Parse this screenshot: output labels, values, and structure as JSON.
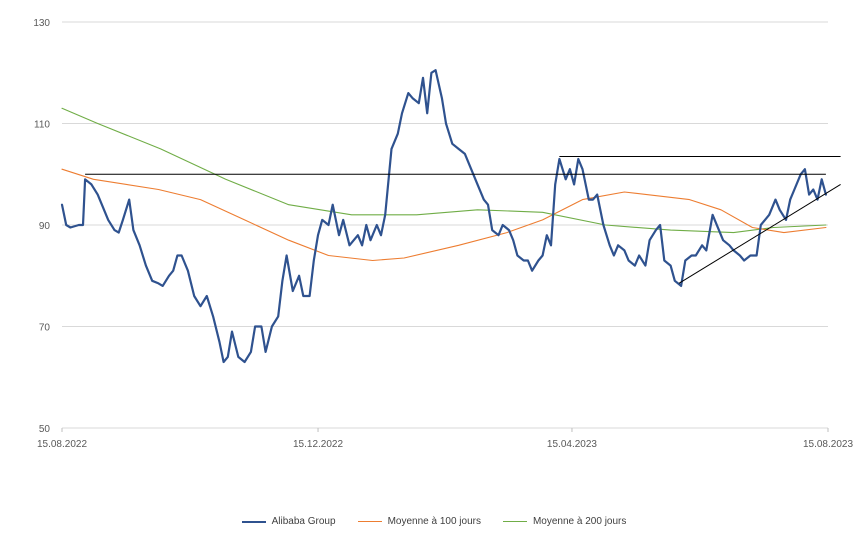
{
  "chart_data": {
    "type": "line",
    "title": "",
    "xlabel": "",
    "ylabel": "",
    "ylim": [
      50,
      130
    ],
    "yticks": [
      50,
      70,
      90,
      110,
      130
    ],
    "y_tick_labels": [
      "50",
      "70",
      "90",
      "110",
      "130"
    ],
    "xlim": [
      "2022-08-15",
      "2023-08-15"
    ],
    "x_tick_labels": [
      "15.08.2022",
      "15.12.2022",
      "15.04.2023",
      "15.08.2023"
    ],
    "grid": "horizontal",
    "legend_position": "bottom",
    "series": [
      {
        "name": "Alibaba Group",
        "color": "#2f528f",
        "points": [
          [
            "2022-08-15",
            94
          ],
          [
            "2022-08-17",
            90
          ],
          [
            "2022-08-19",
            89.5
          ],
          [
            "2022-08-23",
            90
          ],
          [
            "2022-08-25",
            90
          ],
          [
            "2022-08-26",
            99
          ],
          [
            "2022-08-29",
            98
          ],
          [
            "2022-09-01",
            96
          ],
          [
            "2022-09-03",
            94
          ],
          [
            "2022-09-06",
            91
          ],
          [
            "2022-09-09",
            89
          ],
          [
            "2022-09-11",
            88.5
          ],
          [
            "2022-09-13",
            91
          ],
          [
            "2022-09-16",
            95
          ],
          [
            "2022-09-18",
            89
          ],
          [
            "2022-09-21",
            86
          ],
          [
            "2022-09-24",
            82
          ],
          [
            "2022-09-27",
            79
          ],
          [
            "2022-09-30",
            78.5
          ],
          [
            "2022-10-02",
            78
          ],
          [
            "2022-10-05",
            80
          ],
          [
            "2022-10-07",
            81
          ],
          [
            "2022-10-09",
            84
          ],
          [
            "2022-10-11",
            84
          ],
          [
            "2022-10-14",
            81
          ],
          [
            "2022-10-17",
            76
          ],
          [
            "2022-10-20",
            74
          ],
          [
            "2022-10-23",
            76
          ],
          [
            "2022-10-26",
            72
          ],
          [
            "2022-10-29",
            67
          ],
          [
            "2022-10-31",
            63
          ],
          [
            "2022-11-02",
            64
          ],
          [
            "2022-11-04",
            69
          ],
          [
            "2022-11-07",
            64
          ],
          [
            "2022-11-10",
            63
          ],
          [
            "2022-11-13",
            65
          ],
          [
            "2022-11-15",
            70
          ],
          [
            "2022-11-18",
            70
          ],
          [
            "2022-11-20",
            65
          ],
          [
            "2022-11-23",
            70
          ],
          [
            "2022-11-26",
            72
          ],
          [
            "2022-11-28",
            79
          ],
          [
            "2022-11-30",
            84
          ],
          [
            "2022-12-03",
            77
          ],
          [
            "2022-12-06",
            80
          ],
          [
            "2022-12-08",
            76
          ],
          [
            "2022-12-11",
            76
          ],
          [
            "2022-12-13",
            83
          ],
          [
            "2022-12-15",
            88
          ],
          [
            "2022-12-17",
            91
          ],
          [
            "2022-12-20",
            90
          ],
          [
            "2022-12-22",
            94
          ],
          [
            "2022-12-25",
            88
          ],
          [
            "2022-12-27",
            91
          ],
          [
            "2022-12-30",
            86
          ],
          [
            "2023-01-03",
            88
          ],
          [
            "2023-01-05",
            86
          ],
          [
            "2023-01-07",
            90
          ],
          [
            "2023-01-09",
            87
          ],
          [
            "2023-01-12",
            90
          ],
          [
            "2023-01-14",
            88
          ],
          [
            "2023-01-16",
            92
          ],
          [
            "2023-01-19",
            105
          ],
          [
            "2023-01-22",
            108
          ],
          [
            "2023-01-24",
            112
          ],
          [
            "2023-01-27",
            116
          ],
          [
            "2023-01-29",
            115
          ],
          [
            "2023-02-01",
            114
          ],
          [
            "2023-02-03",
            119
          ],
          [
            "2023-02-05",
            112
          ],
          [
            "2023-02-07",
            120
          ],
          [
            "2023-02-09",
            120.5
          ],
          [
            "2023-02-12",
            115
          ],
          [
            "2023-02-14",
            110
          ],
          [
            "2023-02-17",
            106
          ],
          [
            "2023-02-20",
            105
          ],
          [
            "2023-02-23",
            104
          ],
          [
            "2023-02-26",
            101
          ],
          [
            "2023-03-01",
            98
          ],
          [
            "2023-03-04",
            95
          ],
          [
            "2023-03-06",
            94
          ],
          [
            "2023-03-08",
            89
          ],
          [
            "2023-03-11",
            88
          ],
          [
            "2023-03-13",
            90
          ],
          [
            "2023-03-16",
            89
          ],
          [
            "2023-03-18",
            87
          ],
          [
            "2023-03-20",
            84
          ],
          [
            "2023-03-23",
            83
          ],
          [
            "2023-03-25",
            83
          ],
          [
            "2023-03-27",
            81
          ],
          [
            "2023-03-30",
            83
          ],
          [
            "2023-04-01",
            84
          ],
          [
            "2023-04-03",
            88
          ],
          [
            "2023-04-05",
            86
          ],
          [
            "2023-04-07",
            98
          ],
          [
            "2023-04-09",
            103
          ],
          [
            "2023-04-12",
            99
          ],
          [
            "2023-04-14",
            101
          ],
          [
            "2023-04-16",
            98
          ],
          [
            "2023-04-18",
            103
          ],
          [
            "2023-04-20",
            101
          ],
          [
            "2023-04-23",
            95
          ],
          [
            "2023-04-25",
            95
          ],
          [
            "2023-04-27",
            96
          ],
          [
            "2023-04-30",
            90
          ],
          [
            "2023-05-03",
            86
          ],
          [
            "2023-05-05",
            84
          ],
          [
            "2023-05-07",
            86
          ],
          [
            "2023-05-10",
            85
          ],
          [
            "2023-05-12",
            83
          ],
          [
            "2023-05-15",
            82
          ],
          [
            "2023-05-17",
            84
          ],
          [
            "2023-05-20",
            82
          ],
          [
            "2023-05-22",
            87
          ],
          [
            "2023-05-25",
            89
          ],
          [
            "2023-05-27",
            90
          ],
          [
            "2023-05-29",
            83
          ],
          [
            "2023-06-01",
            82
          ],
          [
            "2023-06-03",
            79
          ],
          [
            "2023-06-06",
            78
          ],
          [
            "2023-06-08",
            83
          ],
          [
            "2023-06-11",
            84
          ],
          [
            "2023-06-13",
            84
          ],
          [
            "2023-06-16",
            86
          ],
          [
            "2023-06-18",
            85
          ],
          [
            "2023-06-21",
            92
          ],
          [
            "2023-06-24",
            89
          ],
          [
            "2023-06-26",
            87
          ],
          [
            "2023-06-29",
            86
          ],
          [
            "2023-07-01",
            85
          ],
          [
            "2023-07-04",
            84
          ],
          [
            "2023-07-06",
            83
          ],
          [
            "2023-07-09",
            84
          ],
          [
            "2023-07-12",
            84
          ],
          [
            "2023-07-14",
            90
          ],
          [
            "2023-07-16",
            91
          ],
          [
            "2023-07-18",
            92
          ],
          [
            "2023-07-21",
            95
          ],
          [
            "2023-07-23",
            93
          ],
          [
            "2023-07-26",
            91
          ],
          [
            "2023-07-28",
            95
          ],
          [
            "2023-07-30",
            97
          ],
          [
            "2023-08-02",
            100
          ],
          [
            "2023-08-04",
            101
          ],
          [
            "2023-08-06",
            96
          ],
          [
            "2023-08-08",
            97
          ],
          [
            "2023-08-10",
            95
          ],
          [
            "2023-08-12",
            99
          ],
          [
            "2023-08-14",
            96
          ]
        ]
      },
      {
        "name": "Moyenne à 100 jours",
        "color": "#ed7d31",
        "points": [
          [
            "2022-08-15",
            101
          ],
          [
            "2022-08-30",
            99
          ],
          [
            "2022-09-30",
            97
          ],
          [
            "2022-10-20",
            95
          ],
          [
            "2022-11-10",
            91
          ],
          [
            "2022-12-01",
            87
          ],
          [
            "2022-12-20",
            84
          ],
          [
            "2023-01-10",
            83
          ],
          [
            "2023-01-25",
            83.5
          ],
          [
            "2023-02-20",
            86
          ],
          [
            "2023-03-15",
            88.5
          ],
          [
            "2023-04-01",
            91
          ],
          [
            "2023-04-20",
            95
          ],
          [
            "2023-05-10",
            96.5
          ],
          [
            "2023-06-10",
            95
          ],
          [
            "2023-06-25",
            93
          ],
          [
            "2023-07-10",
            89.5
          ],
          [
            "2023-07-25",
            88.5
          ],
          [
            "2023-08-14",
            89.5
          ]
        ]
      },
      {
        "name": "Moyenne à 200 jours",
        "color": "#70ad47",
        "points": [
          [
            "2022-08-15",
            113
          ],
          [
            "2022-09-01",
            110
          ],
          [
            "2022-10-01",
            105
          ],
          [
            "2022-11-01",
            99
          ],
          [
            "2022-12-01",
            94
          ],
          [
            "2022-12-31",
            92
          ],
          [
            "2023-01-31",
            92
          ],
          [
            "2023-03-01",
            93
          ],
          [
            "2023-04-01",
            92.5
          ],
          [
            "2023-05-01",
            90
          ],
          [
            "2023-06-01",
            89
          ],
          [
            "2023-07-01",
            88.5
          ],
          [
            "2023-07-20",
            89.5
          ],
          [
            "2023-08-14",
            90
          ]
        ]
      }
    ],
    "annotations": [
      {
        "kind": "line",
        "color": "#000000",
        "from": [
          "2022-08-26",
          100
        ],
        "to": [
          "2023-08-14",
          100
        ]
      },
      {
        "kind": "line",
        "color": "#000000",
        "from": [
          "2023-04-09",
          103.5
        ],
        "to": [
          "2023-08-21",
          103.5
        ]
      },
      {
        "kind": "line",
        "color": "#000000",
        "from": [
          "2023-06-05",
          78.5
        ],
        "to": [
          "2023-08-21",
          98
        ]
      }
    ]
  }
}
